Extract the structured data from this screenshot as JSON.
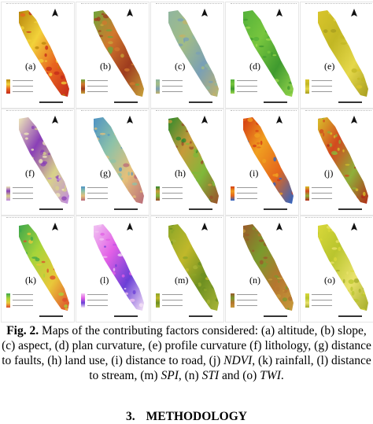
{
  "panels": [
    {
      "label": "(a)",
      "colors": [
        "#b8860b",
        "#f2d23a",
        "#e8641f",
        "#c42a1a"
      ]
    },
    {
      "label": "(b)",
      "colors": [
        "#6fa53a",
        "#d1782d",
        "#9e3b1e",
        "#c9a43a"
      ]
    },
    {
      "label": "(c)",
      "colors": [
        "#8fb5a0",
        "#a3bd84",
        "#7aa0b5",
        "#c2b36a"
      ]
    },
    {
      "label": "(d)",
      "colors": [
        "#54b13a",
        "#78c63e",
        "#3f9a2f",
        "#9bd84e"
      ]
    },
    {
      "label": "(e)",
      "colors": [
        "#d9c52c",
        "#c2b724",
        "#e5d84a",
        "#a79d1f"
      ]
    },
    {
      "label": "(f)",
      "colors": [
        "#efe9b8",
        "#8a3fb7",
        "#d8d28a",
        "#c08adf"
      ]
    },
    {
      "label": "(g)",
      "colors": [
        "#4f93c4",
        "#8dc2a8",
        "#e4c07a",
        "#b96b7a"
      ]
    },
    {
      "label": "(h)",
      "colors": [
        "#2c8a2c",
        "#c79a3a",
        "#7fb83a",
        "#9b4f2a"
      ]
    },
    {
      "label": "(i)",
      "colors": [
        "#d43a13",
        "#f0a020",
        "#e5661b",
        "#2a64c8"
      ]
    },
    {
      "label": "(j)",
      "colors": [
        "#d8c22a",
        "#d2491e",
        "#8fb03a",
        "#b32a17"
      ]
    },
    {
      "label": "(k)",
      "colors": [
        "#3da74b",
        "#a7d43a",
        "#e9c83a",
        "#dd4a2a"
      ]
    },
    {
      "label": "(l)",
      "colors": [
        "#f1c6f2",
        "#e25fe6",
        "#6a3fd6",
        "#f5e3f6"
      ]
    },
    {
      "label": "(m)",
      "colors": [
        "#8ca628",
        "#c0b82a",
        "#6d8f21",
        "#a9b536"
      ]
    },
    {
      "label": "(n)",
      "colors": [
        "#9a5a2a",
        "#7a9a2d",
        "#b5762f",
        "#c79a3a"
      ]
    },
    {
      "label": "(o)",
      "colors": [
        "#d9d83a",
        "#b9c52e",
        "#e9e26b",
        "#a3ab29"
      ]
    }
  ],
  "caption": {
    "fig_label": "Fig. 2.",
    "text_part1": " Maps of the contributing factors considered: (a) altitude, (b) slope, (c) aspect, (d) plan curvature, (e) profile curvature (f) lithology, (g) distance to faults, (h) land use, (i) distance to road, (j) ",
    "ndvi": "NDVI",
    "text_part2": ", (k) rainfall, (l) distance to stream, (m) ",
    "spi": "SPI",
    "text_part3": ", (n) ",
    "sti": "STI",
    "text_part4": " and (o) ",
    "twi": "TWI",
    "text_part5": "."
  },
  "section": {
    "number": "3.",
    "title": "METHODOLOGY"
  }
}
